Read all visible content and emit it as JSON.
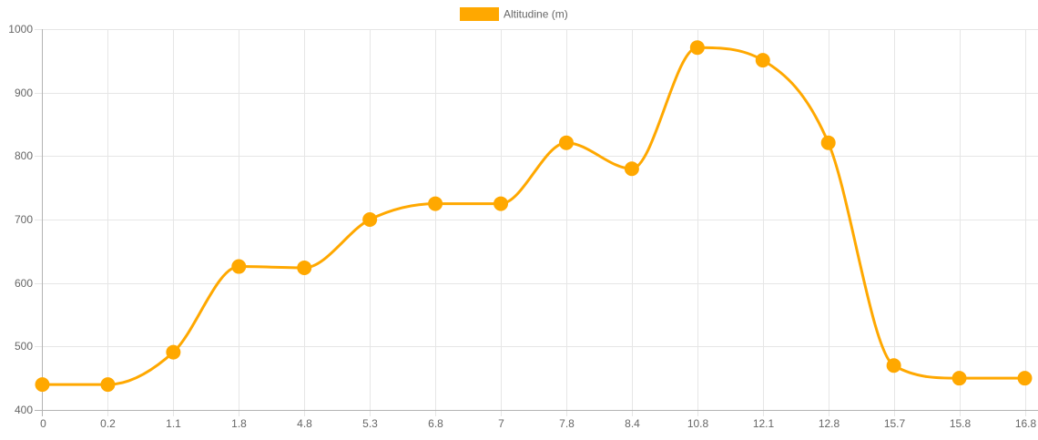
{
  "chart_data": {
    "type": "line",
    "categories": [
      "0",
      "0.2",
      "1.1",
      "1.8",
      "4.8",
      "5.3",
      "6.8",
      "7",
      "7.8",
      "8.4",
      "10.8",
      "12.1",
      "12.8",
      "15.7",
      "15.8",
      "16.8"
    ],
    "series": [
      {
        "name": "Altitudine (m)",
        "color": "#ffa800",
        "values": [
          440,
          440,
          491,
          626,
          624,
          700,
          725,
          725,
          821,
          780,
          971,
          951,
          821,
          470,
          450,
          450
        ]
      }
    ],
    "ylim": [
      400,
      1000
    ],
    "y_ticks": [
      "400",
      "500",
      "600",
      "700",
      "800",
      "900",
      "1000"
    ],
    "grid": true,
    "legend_position": "top-center",
    "title": "",
    "xlabel": "",
    "ylabel": ""
  }
}
